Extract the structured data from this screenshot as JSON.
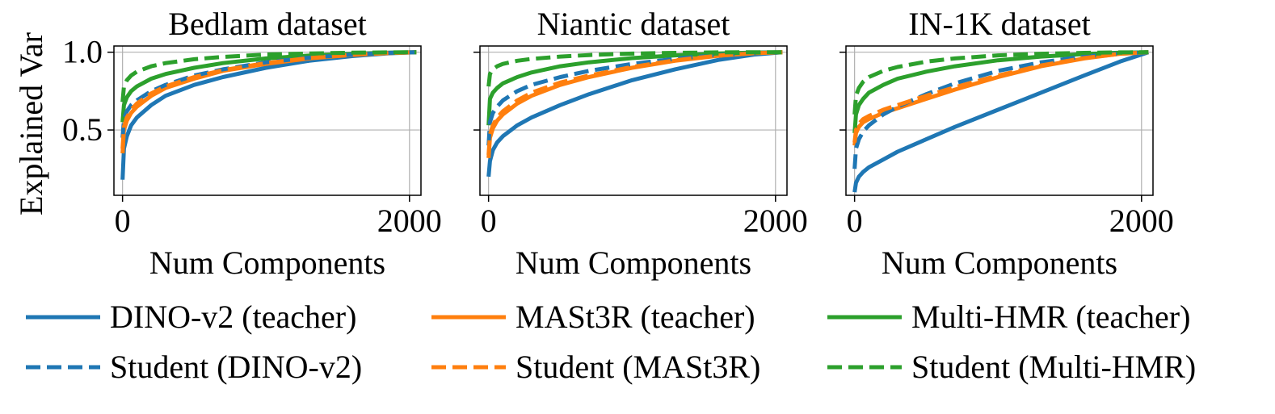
{
  "chart_data": [
    {
      "type": "line",
      "title": "Bedlam dataset",
      "xlabel": "Num Components",
      "ylabel": "Explained Var",
      "xlim": [
        -60,
        2080
      ],
      "ylim": [
        0.08,
        1.04
      ],
      "xticks": [
        "0",
        "2000"
      ],
      "yticks": [
        "0.5",
        "1.0"
      ],
      "grid": true,
      "series": [
        {
          "name": "DINO-v2 (teacher)",
          "color": "#1f77b4",
          "dash": "solid",
          "x": [
            0,
            10,
            30,
            60,
            100,
            200,
            300,
            500,
            700,
            1000,
            1300,
            1600,
            1850,
            2048
          ],
          "y": [
            0.18,
            0.38,
            0.46,
            0.53,
            0.58,
            0.66,
            0.72,
            0.79,
            0.84,
            0.9,
            0.945,
            0.975,
            0.993,
            1.0
          ]
        },
        {
          "name": "Student (DINO-v2)",
          "color": "#1f77b4",
          "dash": "dashed",
          "x": [
            0,
            10,
            30,
            60,
            100,
            200,
            300,
            500,
            700,
            1000,
            1300,
            1600,
            1850,
            2048
          ],
          "y": [
            0.45,
            0.57,
            0.62,
            0.66,
            0.69,
            0.75,
            0.79,
            0.85,
            0.89,
            0.935,
            0.965,
            0.985,
            0.996,
            1.0
          ]
        },
        {
          "name": "MASt3R (teacher)",
          "color": "#ff7f0e",
          "dash": "solid",
          "x": [
            0,
            10,
            30,
            60,
            100,
            200,
            300,
            500,
            700,
            1000,
            1300,
            1600,
            1850,
            2048
          ],
          "y": [
            0.35,
            0.5,
            0.56,
            0.61,
            0.65,
            0.72,
            0.77,
            0.83,
            0.88,
            0.925,
            0.96,
            0.983,
            0.995,
            1.0
          ]
        },
        {
          "name": "Student (MASt3R)",
          "color": "#ff7f0e",
          "dash": "dashed",
          "x": [
            0,
            10,
            30,
            60,
            100,
            200,
            300,
            500,
            700,
            1000,
            1300,
            1600,
            1850,
            2048
          ],
          "y": [
            0.38,
            0.52,
            0.58,
            0.63,
            0.67,
            0.735,
            0.78,
            0.84,
            0.885,
            0.93,
            0.962,
            0.984,
            0.995,
            1.0
          ]
        },
        {
          "name": "Multi-HMR (teacher)",
          "color": "#2ca02c",
          "dash": "solid",
          "x": [
            0,
            10,
            30,
            60,
            100,
            200,
            300,
            500,
            700,
            1000,
            1300,
            1600,
            1850,
            2048
          ],
          "y": [
            0.55,
            0.66,
            0.71,
            0.75,
            0.78,
            0.83,
            0.86,
            0.9,
            0.93,
            0.96,
            0.978,
            0.99,
            0.997,
            1.0
          ]
        },
        {
          "name": "Student (Multi-HMR)",
          "color": "#2ca02c",
          "dash": "dashed",
          "x": [
            0,
            10,
            30,
            60,
            100,
            200,
            300,
            500,
            700,
            1000,
            1300,
            1600,
            1850,
            2048
          ],
          "y": [
            0.68,
            0.78,
            0.82,
            0.85,
            0.875,
            0.91,
            0.93,
            0.955,
            0.97,
            0.985,
            0.992,
            0.997,
            0.999,
            1.0
          ]
        }
      ]
    },
    {
      "type": "line",
      "title": "Niantic dataset",
      "xlabel": "Num Components",
      "ylabel": "",
      "xlim": [
        -60,
        2080
      ],
      "ylim": [
        0.08,
        1.04
      ],
      "xticks": [
        "0",
        "2000"
      ],
      "yticks": [
        "",
        ""
      ],
      "grid": true,
      "series": [
        {
          "name": "DINO-v2 (teacher)",
          "color": "#1f77b4",
          "dash": "solid",
          "x": [
            0,
            10,
            30,
            60,
            100,
            200,
            300,
            500,
            700,
            1000,
            1300,
            1600,
            1850,
            2048
          ],
          "y": [
            0.2,
            0.3,
            0.37,
            0.42,
            0.46,
            0.53,
            0.58,
            0.66,
            0.73,
            0.82,
            0.89,
            0.95,
            0.985,
            1.0
          ]
        },
        {
          "name": "Student (DINO-v2)",
          "color": "#1f77b4",
          "dash": "dashed",
          "x": [
            0,
            10,
            30,
            60,
            100,
            200,
            300,
            500,
            700,
            1000,
            1300,
            1600,
            1850,
            2048
          ],
          "y": [
            0.4,
            0.55,
            0.61,
            0.65,
            0.69,
            0.75,
            0.79,
            0.84,
            0.88,
            0.925,
            0.958,
            0.982,
            0.995,
            1.0
          ]
        },
        {
          "name": "MASt3R (teacher)",
          "color": "#ff7f0e",
          "dash": "solid",
          "x": [
            0,
            10,
            30,
            60,
            100,
            200,
            300,
            500,
            700,
            1000,
            1300,
            1600,
            1850,
            2048
          ],
          "y": [
            0.32,
            0.45,
            0.51,
            0.56,
            0.6,
            0.67,
            0.72,
            0.79,
            0.84,
            0.9,
            0.945,
            0.977,
            0.994,
            1.0
          ]
        },
        {
          "name": "Student (MASt3R)",
          "color": "#ff7f0e",
          "dash": "dashed",
          "x": [
            0,
            10,
            30,
            60,
            100,
            200,
            300,
            500,
            700,
            1000,
            1300,
            1600,
            1850,
            2048
          ],
          "y": [
            0.34,
            0.47,
            0.53,
            0.58,
            0.62,
            0.69,
            0.74,
            0.805,
            0.85,
            0.905,
            0.948,
            0.978,
            0.994,
            1.0
          ]
        },
        {
          "name": "Multi-HMR (teacher)",
          "color": "#2ca02c",
          "dash": "solid",
          "x": [
            0,
            10,
            30,
            60,
            100,
            200,
            300,
            500,
            700,
            1000,
            1300,
            1600,
            1850,
            2048
          ],
          "y": [
            0.53,
            0.7,
            0.74,
            0.77,
            0.8,
            0.84,
            0.87,
            0.91,
            0.935,
            0.962,
            0.98,
            0.992,
            0.998,
            1.0
          ]
        },
        {
          "name": "Student (Multi-HMR)",
          "color": "#2ca02c",
          "dash": "dashed",
          "x": [
            0,
            10,
            30,
            60,
            100,
            200,
            300,
            500,
            700,
            1000,
            1300,
            1600,
            1850,
            2048
          ],
          "y": [
            0.78,
            0.86,
            0.89,
            0.91,
            0.925,
            0.945,
            0.957,
            0.972,
            0.982,
            0.991,
            0.996,
            0.999,
            1.0,
            1.0
          ]
        }
      ]
    },
    {
      "type": "line",
      "title": "IN-1K dataset",
      "xlabel": "Num Components",
      "ylabel": "",
      "xlim": [
        -60,
        2080
      ],
      "ylim": [
        0.08,
        1.04
      ],
      "xticks": [
        "0",
        "2000"
      ],
      "yticks": [
        "",
        ""
      ],
      "grid": true,
      "series": [
        {
          "name": "DINO-v2 (teacher)",
          "color": "#1f77b4",
          "dash": "solid",
          "x": [
            0,
            10,
            30,
            60,
            100,
            200,
            300,
            500,
            700,
            1000,
            1300,
            1600,
            1850,
            2048
          ],
          "y": [
            0.1,
            0.16,
            0.2,
            0.23,
            0.26,
            0.31,
            0.36,
            0.44,
            0.52,
            0.63,
            0.74,
            0.85,
            0.94,
            1.0
          ]
        },
        {
          "name": "Student (DINO-v2)",
          "color": "#1f77b4",
          "dash": "dashed",
          "x": [
            0,
            10,
            30,
            60,
            100,
            200,
            300,
            500,
            700,
            1000,
            1300,
            1600,
            1850,
            2048
          ],
          "y": [
            0.25,
            0.38,
            0.44,
            0.49,
            0.53,
            0.6,
            0.65,
            0.73,
            0.8,
            0.88,
            0.935,
            0.972,
            0.992,
            1.0
          ]
        },
        {
          "name": "MASt3R (teacher)",
          "color": "#ff7f0e",
          "dash": "solid",
          "x": [
            0,
            10,
            30,
            60,
            100,
            200,
            300,
            500,
            700,
            1000,
            1300,
            1600,
            1850,
            2048
          ],
          "y": [
            0.4,
            0.48,
            0.52,
            0.55,
            0.57,
            0.61,
            0.64,
            0.7,
            0.76,
            0.84,
            0.91,
            0.96,
            0.99,
            1.0
          ]
        },
        {
          "name": "Student (MASt3R)",
          "color": "#ff7f0e",
          "dash": "dashed",
          "x": [
            0,
            10,
            30,
            60,
            100,
            200,
            300,
            500,
            700,
            1000,
            1300,
            1600,
            1850,
            2048
          ],
          "y": [
            0.42,
            0.5,
            0.54,
            0.57,
            0.59,
            0.63,
            0.66,
            0.72,
            0.775,
            0.85,
            0.915,
            0.962,
            0.99,
            1.0
          ]
        },
        {
          "name": "Multi-HMR (teacher)",
          "color": "#2ca02c",
          "dash": "solid",
          "x": [
            0,
            10,
            30,
            60,
            100,
            200,
            300,
            500,
            700,
            1000,
            1300,
            1600,
            1850,
            2048
          ],
          "y": [
            0.48,
            0.6,
            0.66,
            0.7,
            0.74,
            0.79,
            0.83,
            0.875,
            0.91,
            0.948,
            0.972,
            0.988,
            0.997,
            1.0
          ]
        },
        {
          "name": "Student (Multi-HMR)",
          "color": "#2ca02c",
          "dash": "dashed",
          "x": [
            0,
            10,
            30,
            60,
            100,
            200,
            300,
            500,
            700,
            1000,
            1300,
            1600,
            1850,
            2048
          ],
          "y": [
            0.6,
            0.72,
            0.77,
            0.81,
            0.84,
            0.88,
            0.905,
            0.94,
            0.96,
            0.98,
            0.99,
            0.996,
            0.999,
            1.0
          ]
        }
      ]
    }
  ],
  "legend": {
    "placement": "bottom",
    "entries": [
      {
        "label": "DINO-v2 (teacher)",
        "color": "#1f77b4",
        "dash": "solid"
      },
      {
        "label": "MASt3R (teacher)",
        "color": "#ff7f0e",
        "dash": "solid"
      },
      {
        "label": "Multi-HMR (teacher)",
        "color": "#2ca02c",
        "dash": "solid"
      },
      {
        "label": "Student (DINO-v2)",
        "color": "#1f77b4",
        "dash": "dashed"
      },
      {
        "label": "Student (MASt3R)",
        "color": "#ff7f0e",
        "dash": "dashed"
      },
      {
        "label": "Student (Multi-HMR)",
        "color": "#2ca02c",
        "dash": "dashed"
      }
    ]
  }
}
